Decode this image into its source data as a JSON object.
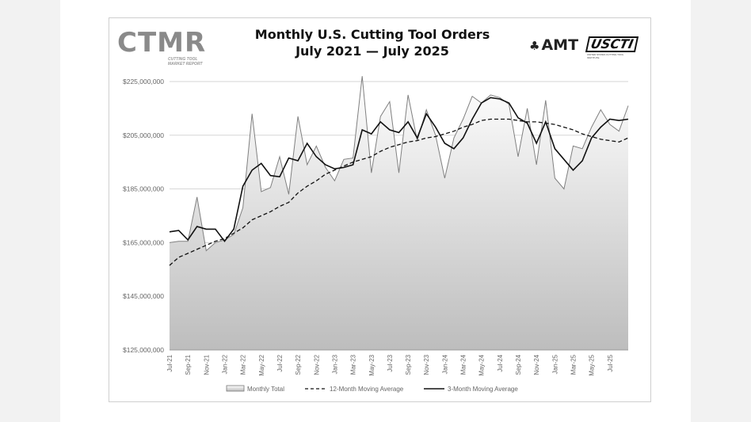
{
  "header": {
    "title_line1": "Monthly U.S. Cutting Tool Orders",
    "title_line2": "July 2021 — July 2025",
    "logo_left": "CTMR",
    "logo_left_sub": "CUTTING TOOL MARKET REPORT",
    "logo_right_1": "AMT",
    "logo_right_2": "USCTI",
    "logo_right_2_sub": "UNITED STATES CUTTING TOOL INSTITUTE"
  },
  "colors": {
    "background": "#f2f2f2",
    "area_fill_top": "#ffffff",
    "area_fill_bottom": "#bdbdbd",
    "monthly_line": "#808080",
    "moving_avg_line": "#111111",
    "gridline": "#d6d6d6"
  },
  "chart_data": {
    "type": "area",
    "title": "Monthly U.S. Cutting Tool Orders July 2021 — July 2025",
    "ylim": [
      125000000,
      225000000
    ],
    "y_ticks": [
      125000000,
      145000000,
      165000000,
      185000000,
      205000000,
      225000000
    ],
    "y_tick_labels": [
      "$125,000,000",
      "$145,000,000",
      "$165,000,000",
      "$185,000,000",
      "$205,000,000",
      "$225,000,000"
    ],
    "x_tick_labels": [
      "Jul-21",
      "Sep-21",
      "Nov-21",
      "Jan-22",
      "Mar-22",
      "May-22",
      "Jul-22",
      "Sep-22",
      "Nov-22",
      "Jan-23",
      "Mar-23",
      "May-23",
      "Jul-23",
      "Sep-23",
      "Nov-23",
      "Jan-24",
      "Mar-24",
      "May-24",
      "Jul-24",
      "Sep-24",
      "Nov-24",
      "Jan-25",
      "Mar-25",
      "May-25",
      "Jul-25"
    ],
    "grid": true,
    "legend_position": "bottom",
    "series": [
      {
        "name": "Monthly Total",
        "style": "area",
        "values": [
          165000000,
          165500000,
          165500000,
          182000000,
          162000000,
          165000000,
          166000000,
          168000000,
          178000000,
          213000000,
          184000000,
          185500000,
          197000000,
          183000000,
          212000000,
          194000000,
          201000000,
          193000000,
          188000000,
          196000000,
          196500000,
          227000000,
          191000000,
          212000000,
          217500000,
          191000000,
          220000000,
          203000000,
          214500000,
          205000000,
          189000000,
          204000000,
          211000000,
          219500000,
          217000000,
          220000000,
          219000000,
          216500000,
          197000000,
          215000000,
          194000000,
          218000000,
          189000000,
          185000000,
          201000000,
          200000000,
          208000000,
          214500000,
          209000000,
          206500000,
          216000000
        ]
      },
      {
        "name": "12-Month Moving Average",
        "style": "dashed",
        "values": [
          156500000,
          159500000,
          161000000,
          162500000,
          164000000,
          165500000,
          166500000,
          168500000,
          170500000,
          173500000,
          175000000,
          176500000,
          178500000,
          180000000,
          183500000,
          186000000,
          188000000,
          190500000,
          192000000,
          193500000,
          195000000,
          196000000,
          197000000,
          199000000,
          200500000,
          201500000,
          202500000,
          203000000,
          204000000,
          204500000,
          205500000,
          206500000,
          208000000,
          209000000,
          210500000,
          211000000,
          211000000,
          211000000,
          210500000,
          210000000,
          210000000,
          209500000,
          209000000,
          208000000,
          207000000,
          205500000,
          204500000,
          203500000,
          203000000,
          202500000,
          204000000
        ]
      },
      {
        "name": "3-Month Moving Average",
        "style": "solid",
        "values": [
          169000000,
          169500000,
          166000000,
          171000000,
          170000000,
          170000000,
          165500000,
          170000000,
          186000000,
          192000000,
          194500000,
          190000000,
          189500000,
          196500000,
          195500000,
          202000000,
          197000000,
          194000000,
          192500000,
          193000000,
          194000000,
          207000000,
          205500000,
          210000000,
          207000000,
          206000000,
          210000000,
          204000000,
          213000000,
          208000000,
          202000000,
          200000000,
          204000000,
          211000000,
          217000000,
          219000000,
          218500000,
          217000000,
          211500000,
          209500000,
          202000000,
          210000000,
          200000000,
          196000000,
          192000000,
          195500000,
          204000000,
          208000000,
          211000000,
          210500000,
          211000000
        ]
      }
    ]
  }
}
